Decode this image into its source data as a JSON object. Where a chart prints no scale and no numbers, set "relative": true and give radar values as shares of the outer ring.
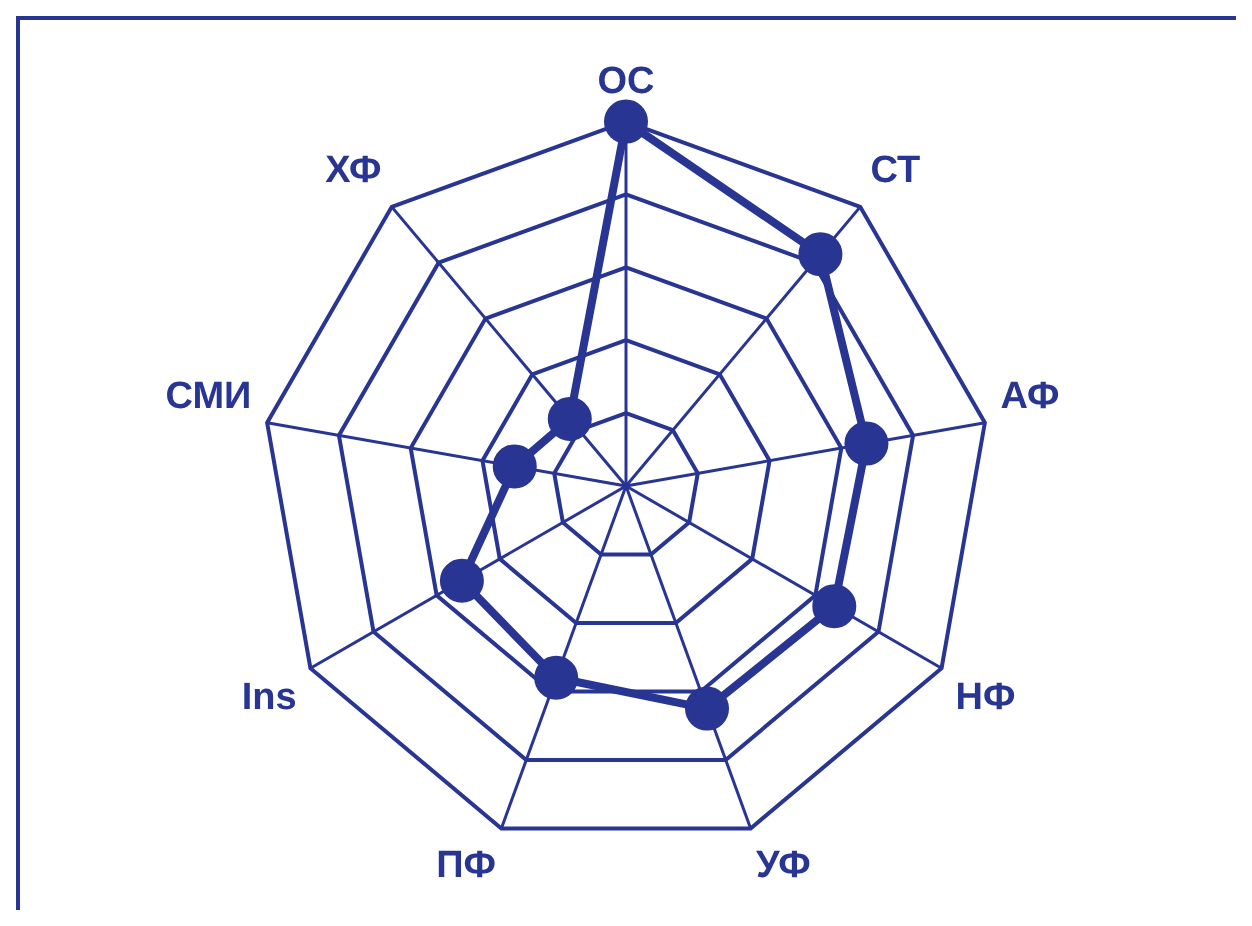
{
  "chart_data": {
    "type": "radar",
    "relative": true,
    "grid": true,
    "legend": false,
    "marker": "circle",
    "line_style": "solid",
    "categories": [
      "ОС",
      "СТ",
      "АФ",
      "НФ",
      "УФ",
      "ПФ",
      "Ins",
      "СМИ",
      "ХФ"
    ],
    "series": [
      {
        "color": "#283593",
        "values": [
          1.0,
          0.83,
          0.67,
          0.66,
          0.65,
          0.56,
          0.52,
          0.31,
          0.24
        ]
      }
    ]
  }
}
